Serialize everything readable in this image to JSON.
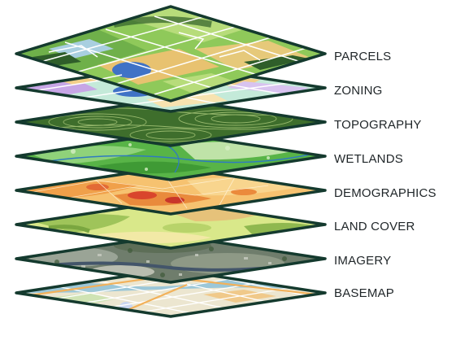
{
  "diagram": {
    "layers": [
      {
        "label": "PARCELS",
        "pattern": "parcels"
      },
      {
        "label": "ZONING",
        "pattern": "zoning"
      },
      {
        "label": "TOPOGRAPHY",
        "pattern": "topography"
      },
      {
        "label": "WETLANDS",
        "pattern": "wetlands"
      },
      {
        "label": "DEMOGRAPHICS",
        "pattern": "demographics"
      },
      {
        "label": "LAND COVER",
        "pattern": "landcover"
      },
      {
        "label": "IMAGERY",
        "pattern": "imagery"
      },
      {
        "label": "BASEMAP",
        "pattern": "basemap"
      }
    ],
    "colors": {
      "outline": "#143a2e",
      "label_text": "#1f2528",
      "background": "#ffffff"
    }
  }
}
